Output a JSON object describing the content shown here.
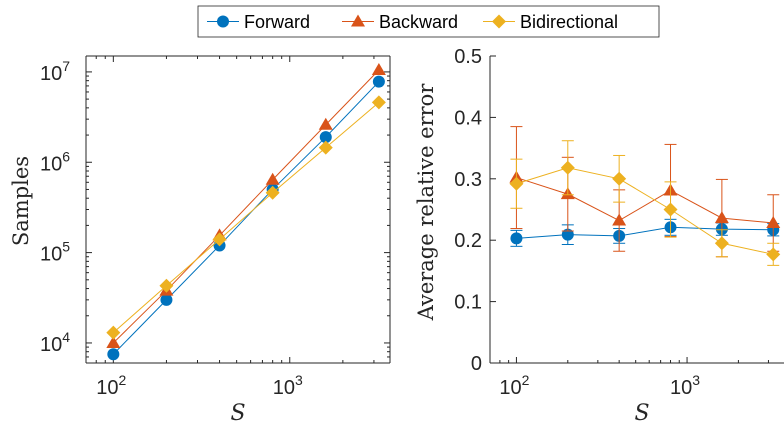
{
  "legend": {
    "entries": [
      {
        "label": "Forward",
        "color": "#0072BD",
        "marker": "circle"
      },
      {
        "label": "Backward",
        "color": "#D95319",
        "marker": "triangle"
      },
      {
        "label": "Bidirectional",
        "color": "#EDB120",
        "marker": "diamond"
      }
    ]
  },
  "chart_data": [
    {
      "type": "line",
      "x_scale": "log",
      "y_scale": "log",
      "xlabel": "S",
      "ylabel": "Samples",
      "xlim": [
        70,
        3700
      ],
      "ylim": [
        6000,
        15000000
      ],
      "x_ticks": [
        {
          "value": 100,
          "base": "10",
          "exp": "2"
        },
        {
          "value": 1000,
          "base": "10",
          "exp": "3"
        }
      ],
      "y_ticks": [
        {
          "value": 10000,
          "base": "10",
          "exp": "4"
        },
        {
          "value": 100000,
          "base": "10",
          "exp": "5"
        },
        {
          "value": 1000000,
          "base": "10",
          "exp": "6"
        },
        {
          "value": 10000000,
          "base": "10",
          "exp": "7"
        }
      ],
      "x": [
        100,
        200,
        400,
        800,
        1600,
        3200
      ],
      "series": [
        {
          "name": "Forward",
          "values": [
            7500,
            30000,
            120000,
            500000,
            1900000,
            7800000
          ]
        },
        {
          "name": "Backward",
          "values": [
            10000,
            38000,
            155000,
            640000,
            2600000,
            10500000
          ]
        },
        {
          "name": "Bidirectional",
          "values": [
            13000,
            43000,
            140000,
            460000,
            1450000,
            4600000
          ]
        }
      ]
    },
    {
      "type": "line",
      "x_scale": "log",
      "y_scale": "linear",
      "xlabel": "S",
      "ylabel": "Average relative error",
      "xlim": [
        70,
        3700
      ],
      "ylim": [
        0,
        0.5
      ],
      "x_ticks": [
        {
          "value": 100,
          "base": "10",
          "exp": "2"
        },
        {
          "value": 1000,
          "base": "10",
          "exp": "3"
        }
      ],
      "y_ticks": [
        {
          "value": 0,
          "label": "0"
        },
        {
          "value": 0.1,
          "label": "0.1"
        },
        {
          "value": 0.2,
          "label": "0.2"
        },
        {
          "value": 0.3,
          "label": "0.3"
        },
        {
          "value": 0.4,
          "label": "0.4"
        },
        {
          "value": 0.5,
          "label": "0.5"
        }
      ],
      "x": [
        100,
        200,
        400,
        800,
        1600,
        3200
      ],
      "series": [
        {
          "name": "Forward",
          "values": [
            0.203,
            0.209,
            0.207,
            0.221,
            0.218,
            0.217
          ],
          "err": [
            0.013,
            0.016,
            0.012,
            0.013,
            0.01,
            0.01
          ]
        },
        {
          "name": "Backward",
          "values": [
            0.302,
            0.275,
            0.232,
            0.281,
            0.236,
            0.228
          ],
          "err": [
            0.083,
            0.06,
            0.05,
            0.075,
            0.063,
            0.046
          ]
        },
        {
          "name": "Bidirectional",
          "values": [
            0.292,
            0.318,
            0.3,
            0.25,
            0.195,
            0.177
          ],
          "err": [
            0.04,
            0.044,
            0.038,
            0.045,
            0.022,
            0.018
          ]
        }
      ]
    }
  ]
}
